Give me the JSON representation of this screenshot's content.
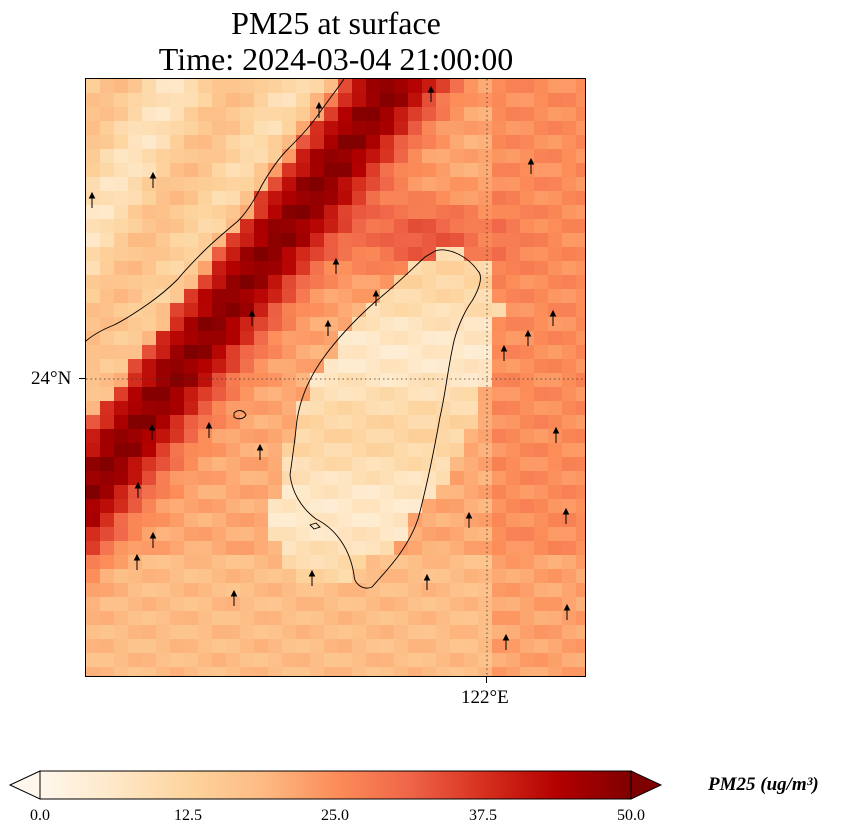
{
  "title": {
    "line1": "PM25 at surface",
    "line2": "Time: 2024-03-04 21:00:00"
  },
  "axes": {
    "lat_label": "24°N",
    "lon_label": "122°E"
  },
  "colorbar": {
    "label": "PM25 (ug/m³)",
    "ticks": [
      "0.0",
      "12.5",
      "25.0",
      "37.5",
      "50.0"
    ],
    "min": 0,
    "max": 50,
    "extend": "both",
    "colors": [
      "#fff7ec",
      "#fee8c8",
      "#fdd49e",
      "#fdbb84",
      "#fc8d59",
      "#ef6548",
      "#d7301f",
      "#b30000",
      "#7f0000"
    ]
  },
  "map": {
    "land_outline_color": "#000000",
    "gridline_style": "dotted",
    "wind_arrow_color": "#000000"
  }
}
